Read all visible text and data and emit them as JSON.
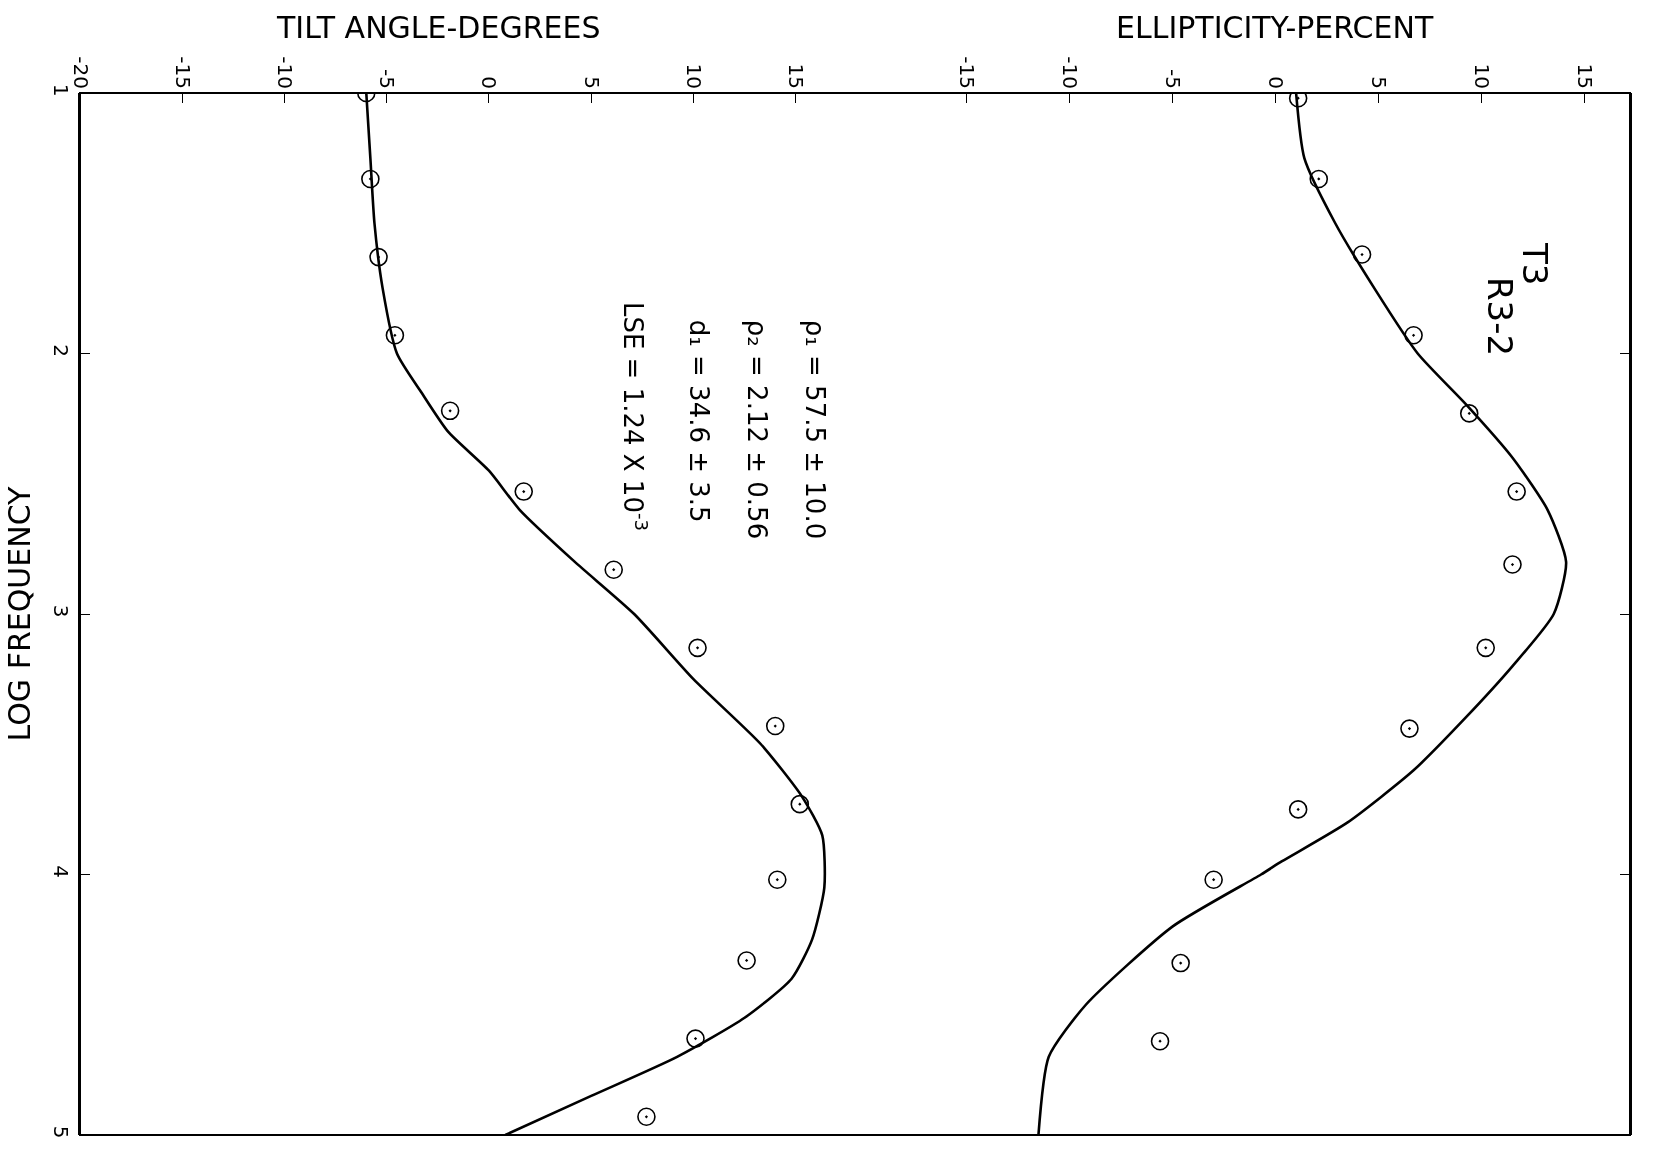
{
  "chart_data": {
    "type": "scatter",
    "xlabel": "TILT ANGLE-DEGREES",
    "x2label": "ELLIPTICITY-PERCENT",
    "ylabel": "LOG FREQUENCY",
    "xlim": [
      -20,
      55.8
    ],
    "xticks": [
      -20,
      -15,
      -10,
      -5,
      0,
      5,
      10,
      15
    ],
    "x2lim": [
      -58,
      17.2
    ],
    "x2ticks": [
      -15,
      -10,
      -5,
      0,
      5,
      10,
      15
    ],
    "ylim": [
      5,
      1
    ],
    "yticks": [
      1,
      2,
      3,
      4,
      5
    ],
    "marker": "circle",
    "annotations": [
      "T3",
      "R3-2",
      "ρ₁ = 57.5 ± 10.0",
      "ρ₂ = 2.12 ± 0.56",
      "d₁ = 34.6 ± 3.5",
      "LSE = 1.24 X 10$^{-3}$"
    ],
    "series": [
      {
        "color": "#000000",
        "x": [
          -6.0,
          -5.8,
          -5.4,
          -4.6,
          -1.9,
          1.7,
          6.1,
          10.2,
          14.0,
          15.2,
          14.1,
          12.6,
          10.1,
          7.7
        ],
        "values": [
          1.0,
          1.33,
          1.63,
          1.93,
          2.22,
          2.53,
          2.83,
          3.13,
          3.43,
          3.73,
          4.02,
          4.33,
          4.63,
          4.93
        ]
      },
      {
        "type": "line",
        "color": "#000000",
        "marker": "none",
        "x": [
          -6.0,
          -5.8,
          -5.6,
          -5.2,
          -4.5,
          -3.3,
          -2.0,
          0.0,
          1.5,
          4.2,
          7.1,
          10.0,
          13.3,
          15.3,
          16.3,
          16.4,
          15.8,
          14.8,
          12.5,
          9.2,
          5.0,
          0.8
        ],
        "values": [
          1.0,
          1.25,
          1.5,
          1.75,
          2.0,
          2.15,
          2.3,
          2.45,
          2.6,
          2.8,
          3.0,
          3.25,
          3.5,
          3.7,
          3.85,
          4.05,
          4.25,
          4.4,
          4.55,
          4.7,
          4.85,
          5.0
        ]
      },
      {
        "axis": "x2",
        "color": "#000000",
        "x": [
          1.1,
          2.1,
          4.2,
          6.7,
          9.4,
          11.7,
          11.5,
          10.2,
          6.5,
          1.1,
          -3.0,
          -4.6,
          -5.6
        ],
        "values": [
          1.02,
          1.33,
          1.62,
          1.93,
          2.23,
          2.53,
          2.81,
          3.13,
          3.44,
          3.75,
          4.02,
          4.34,
          4.64
        ]
      },
      {
        "type": "line",
        "axis": "x2",
        "color": "#000000",
        "marker": "none",
        "x": [
          1.0,
          1.4,
          2.9,
          4.8,
          6.9,
          9.3,
          11.5,
          13.2,
          14.1,
          13.5,
          11.5,
          9.2,
          6.7,
          3.5,
          0.3,
          -0.7,
          -5.0,
          -9.2,
          -11.0,
          -11.5
        ],
        "values": [
          1.0,
          1.25,
          1.5,
          1.75,
          2.0,
          2.2,
          2.4,
          2.6,
          2.8,
          3.0,
          3.2,
          3.4,
          3.6,
          3.8,
          3.95,
          4.0,
          4.2,
          4.5,
          4.7,
          5.0
        ]
      }
    ]
  }
}
